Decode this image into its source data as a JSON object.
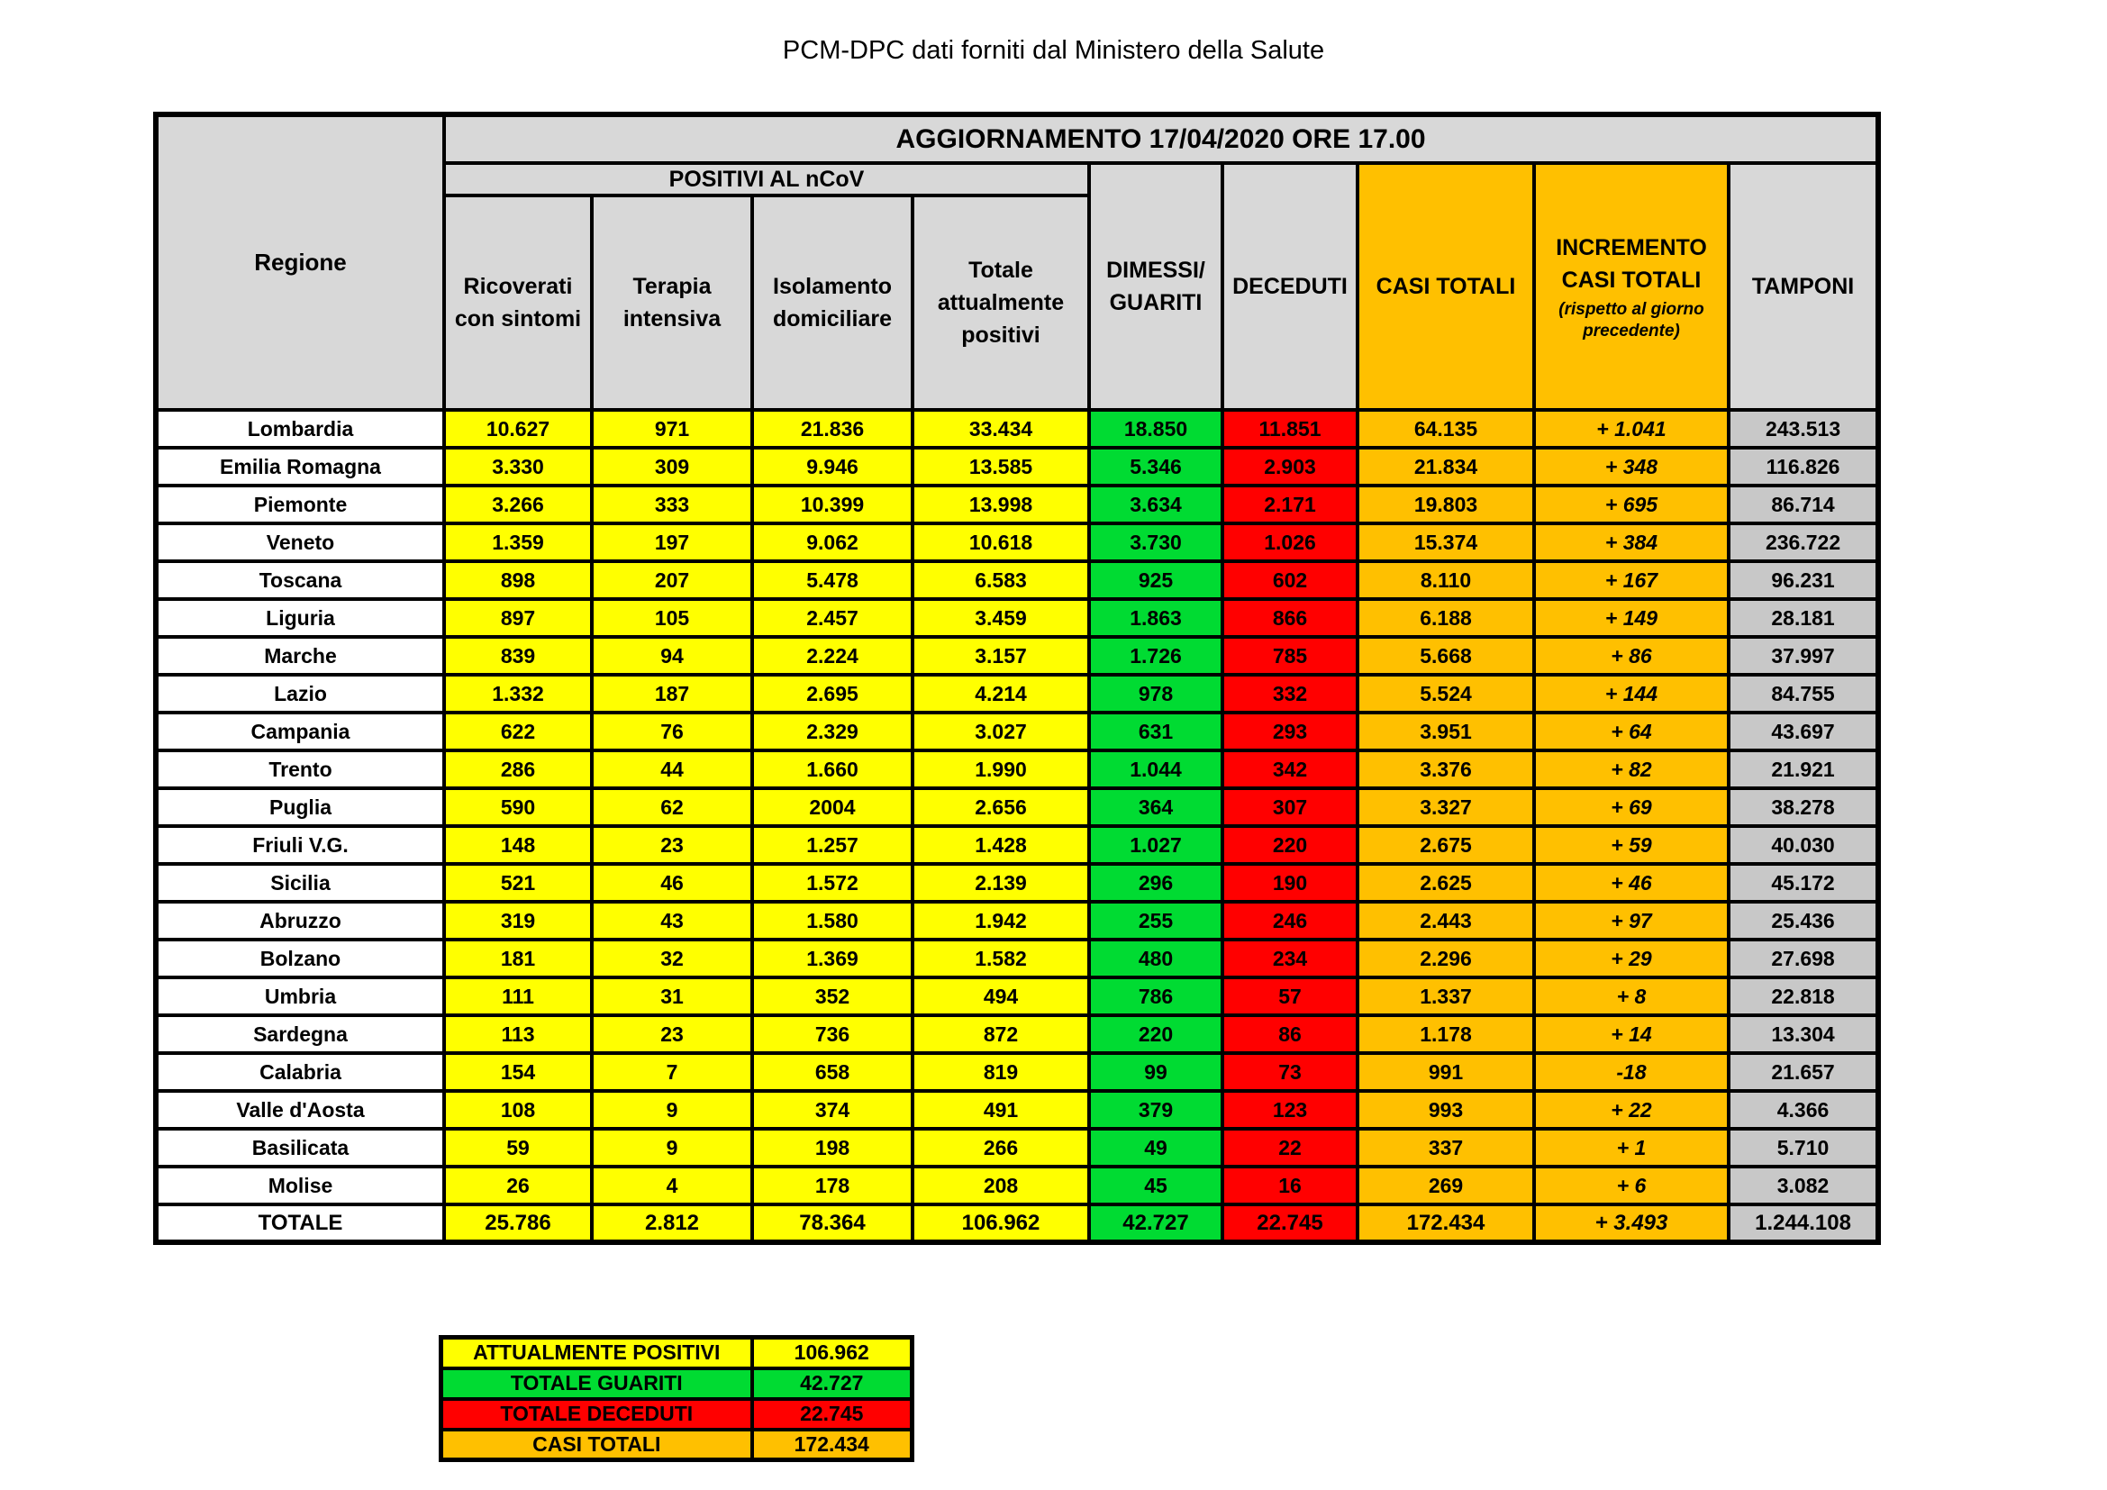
{
  "page_title": "PCM-DPC dati forniti dal Ministero della Salute",
  "colors": {
    "yellow": "#FFFF00",
    "green": "#00DB32",
    "red": "#FF0000",
    "orange": "#FFC000",
    "header_grey": "#D8D8D8",
    "tamponi_grey": "#C8C8C8",
    "border": "#000000",
    "background": "#FFFFFF"
  },
  "table": {
    "update_header": "AGGIORNAMENTO 17/04/2020 ORE 17.00",
    "region_header": "Regione",
    "positivi_group_header": "POSITIVI AL nCoV",
    "columns": {
      "ricoverati": "Ricoverati\ncon sintomi",
      "terapia": "Terapia\nintensiva",
      "isolamento": "Isolamento\ndomiciliare",
      "totale_positivi": "Totale\nattualmente\npositivi",
      "dimessi": "DIMESSI/\nGUARITI",
      "deceduti": "DECEDUTI",
      "casi_totali": "CASI TOTALI",
      "incremento": "INCREMENTO\nCASI  TOTALI",
      "incremento_note": "(rispetto al giorno\nprecedente)",
      "tamponi": "TAMPONI"
    },
    "rows": [
      {
        "region": "Lombardia",
        "values": [
          "10.627",
          "971",
          "21.836",
          "33.434",
          "18.850",
          "11.851",
          "64.135",
          "+ 1.041",
          "243.513"
        ]
      },
      {
        "region": "Emilia Romagna",
        "values": [
          "3.330",
          "309",
          "9.946",
          "13.585",
          "5.346",
          "2.903",
          "21.834",
          "+ 348",
          "116.826"
        ]
      },
      {
        "region": "Piemonte",
        "values": [
          "3.266",
          "333",
          "10.399",
          "13.998",
          "3.634",
          "2.171",
          "19.803",
          "+ 695",
          "86.714"
        ]
      },
      {
        "region": "Veneto",
        "values": [
          "1.359",
          "197",
          "9.062",
          "10.618",
          "3.730",
          "1.026",
          "15.374",
          "+ 384",
          "236.722"
        ]
      },
      {
        "region": "Toscana",
        "values": [
          "898",
          "207",
          "5.478",
          "6.583",
          "925",
          "602",
          "8.110",
          "+ 167",
          "96.231"
        ]
      },
      {
        "region": "Liguria",
        "values": [
          "897",
          "105",
          "2.457",
          "3.459",
          "1.863",
          "866",
          "6.188",
          "+ 149",
          "28.181"
        ]
      },
      {
        "region": "Marche",
        "values": [
          "839",
          "94",
          "2.224",
          "3.157",
          "1.726",
          "785",
          "5.668",
          "+ 86",
          "37.997"
        ]
      },
      {
        "region": "Lazio",
        "values": [
          "1.332",
          "187",
          "2.695",
          "4.214",
          "978",
          "332",
          "5.524",
          "+ 144",
          "84.755"
        ]
      },
      {
        "region": "Campania",
        "values": [
          "622",
          "76",
          "2.329",
          "3.027",
          "631",
          "293",
          "3.951",
          "+ 64",
          "43.697"
        ]
      },
      {
        "region": "Trento",
        "values": [
          "286",
          "44",
          "1.660",
          "1.990",
          "1.044",
          "342",
          "3.376",
          "+ 82",
          "21.921"
        ]
      },
      {
        "region": "Puglia",
        "values": [
          "590",
          "62",
          "2004",
          "2.656",
          "364",
          "307",
          "3.327",
          "+ 69",
          "38.278"
        ]
      },
      {
        "region": "Friuli V.G.",
        "values": [
          "148",
          "23",
          "1.257",
          "1.428",
          "1.027",
          "220",
          "2.675",
          "+ 59",
          "40.030"
        ]
      },
      {
        "region": "Sicilia",
        "values": [
          "521",
          "46",
          "1.572",
          "2.139",
          "296",
          "190",
          "2.625",
          "+ 46",
          "45.172"
        ]
      },
      {
        "region": "Abruzzo",
        "values": [
          "319",
          "43",
          "1.580",
          "1.942",
          "255",
          "246",
          "2.443",
          "+ 97",
          "25.436"
        ]
      },
      {
        "region": "Bolzano",
        "values": [
          "181",
          "32",
          "1.369",
          "1.582",
          "480",
          "234",
          "2.296",
          "+ 29",
          "27.698"
        ]
      },
      {
        "region": "Umbria",
        "values": [
          "111",
          "31",
          "352",
          "494",
          "786",
          "57",
          "1.337",
          "+ 8",
          "22.818"
        ]
      },
      {
        "region": "Sardegna",
        "values": [
          "113",
          "23",
          "736",
          "872",
          "220",
          "86",
          "1.178",
          "+ 14",
          "13.304"
        ]
      },
      {
        "region": "Calabria",
        "values": [
          "154",
          "7",
          "658",
          "819",
          "99",
          "73",
          "991",
          "-18",
          "21.657"
        ]
      },
      {
        "region": "Valle d'Aosta",
        "values": [
          "108",
          "9",
          "374",
          "491",
          "379",
          "123",
          "993",
          "+ 22",
          "4.366"
        ]
      },
      {
        "region": "Basilicata",
        "values": [
          "59",
          "9",
          "198",
          "266",
          "49",
          "22",
          "337",
          "+ 1",
          "5.710"
        ]
      },
      {
        "region": "Molise",
        "values": [
          "26",
          "4",
          "178",
          "208",
          "45",
          "16",
          "269",
          "+ 6",
          "3.082"
        ]
      }
    ],
    "total_row": {
      "region": "TOTALE",
      "values": [
        "25.786",
        "2.812",
        "78.364",
        "106.962",
        "42.727",
        "22.745",
        "172.434",
        "+ 3.493",
        "1.244.108"
      ]
    }
  },
  "summary": {
    "rows": [
      {
        "label": "ATTUALMENTE POSITIVI",
        "value": "106.962",
        "color": "yellow"
      },
      {
        "label": "TOTALE GUARITI",
        "value": "42.727",
        "color": "green"
      },
      {
        "label": "TOTALE DECEDUTI",
        "value": "22.745",
        "color": "red"
      },
      {
        "label": "CASI TOTALI",
        "value": "172.434",
        "color": "orange"
      }
    ]
  }
}
